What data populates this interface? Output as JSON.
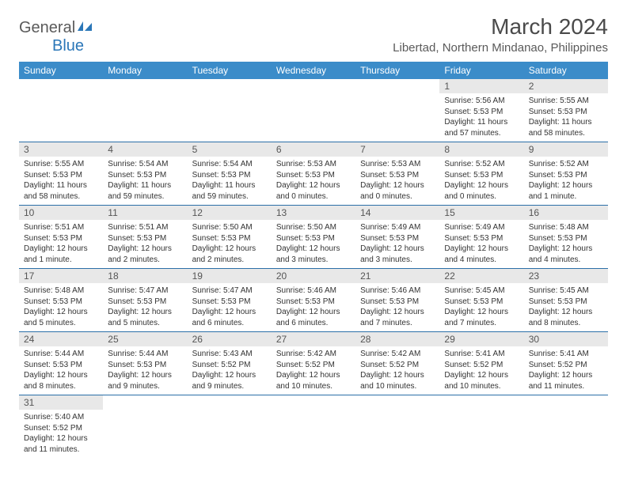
{
  "logo": {
    "text1": "General",
    "text2": "Blue"
  },
  "title": "March 2024",
  "location": "Libertad, Northern Mindanao, Philippines",
  "colors": {
    "header_bg": "#3b8cc9",
    "header_text": "#ffffff",
    "day_num_bg": "#e8e8e8",
    "border": "#2b6fa8",
    "logo_blue": "#2b77b8",
    "logo_gray": "#5a5a5a"
  },
  "weekdays": [
    "Sunday",
    "Monday",
    "Tuesday",
    "Wednesday",
    "Thursday",
    "Friday",
    "Saturday"
  ],
  "weeks": [
    [
      null,
      null,
      null,
      null,
      null,
      {
        "d": "1",
        "sr": "5:56 AM",
        "ss": "5:53 PM",
        "dl": "11 hours and 57 minutes."
      },
      {
        "d": "2",
        "sr": "5:55 AM",
        "ss": "5:53 PM",
        "dl": "11 hours and 58 minutes."
      }
    ],
    [
      {
        "d": "3",
        "sr": "5:55 AM",
        "ss": "5:53 PM",
        "dl": "11 hours and 58 minutes."
      },
      {
        "d": "4",
        "sr": "5:54 AM",
        "ss": "5:53 PM",
        "dl": "11 hours and 59 minutes."
      },
      {
        "d": "5",
        "sr": "5:54 AM",
        "ss": "5:53 PM",
        "dl": "11 hours and 59 minutes."
      },
      {
        "d": "6",
        "sr": "5:53 AM",
        "ss": "5:53 PM",
        "dl": "12 hours and 0 minutes."
      },
      {
        "d": "7",
        "sr": "5:53 AM",
        "ss": "5:53 PM",
        "dl": "12 hours and 0 minutes."
      },
      {
        "d": "8",
        "sr": "5:52 AM",
        "ss": "5:53 PM",
        "dl": "12 hours and 0 minutes."
      },
      {
        "d": "9",
        "sr": "5:52 AM",
        "ss": "5:53 PM",
        "dl": "12 hours and 1 minute."
      }
    ],
    [
      {
        "d": "10",
        "sr": "5:51 AM",
        "ss": "5:53 PM",
        "dl": "12 hours and 1 minute."
      },
      {
        "d": "11",
        "sr": "5:51 AM",
        "ss": "5:53 PM",
        "dl": "12 hours and 2 minutes."
      },
      {
        "d": "12",
        "sr": "5:50 AM",
        "ss": "5:53 PM",
        "dl": "12 hours and 2 minutes."
      },
      {
        "d": "13",
        "sr": "5:50 AM",
        "ss": "5:53 PM",
        "dl": "12 hours and 3 minutes."
      },
      {
        "d": "14",
        "sr": "5:49 AM",
        "ss": "5:53 PM",
        "dl": "12 hours and 3 minutes."
      },
      {
        "d": "15",
        "sr": "5:49 AM",
        "ss": "5:53 PM",
        "dl": "12 hours and 4 minutes."
      },
      {
        "d": "16",
        "sr": "5:48 AM",
        "ss": "5:53 PM",
        "dl": "12 hours and 4 minutes."
      }
    ],
    [
      {
        "d": "17",
        "sr": "5:48 AM",
        "ss": "5:53 PM",
        "dl": "12 hours and 5 minutes."
      },
      {
        "d": "18",
        "sr": "5:47 AM",
        "ss": "5:53 PM",
        "dl": "12 hours and 5 minutes."
      },
      {
        "d": "19",
        "sr": "5:47 AM",
        "ss": "5:53 PM",
        "dl": "12 hours and 6 minutes."
      },
      {
        "d": "20",
        "sr": "5:46 AM",
        "ss": "5:53 PM",
        "dl": "12 hours and 6 minutes."
      },
      {
        "d": "21",
        "sr": "5:46 AM",
        "ss": "5:53 PM",
        "dl": "12 hours and 7 minutes."
      },
      {
        "d": "22",
        "sr": "5:45 AM",
        "ss": "5:53 PM",
        "dl": "12 hours and 7 minutes."
      },
      {
        "d": "23",
        "sr": "5:45 AM",
        "ss": "5:53 PM",
        "dl": "12 hours and 8 minutes."
      }
    ],
    [
      {
        "d": "24",
        "sr": "5:44 AM",
        "ss": "5:53 PM",
        "dl": "12 hours and 8 minutes."
      },
      {
        "d": "25",
        "sr": "5:44 AM",
        "ss": "5:53 PM",
        "dl": "12 hours and 9 minutes."
      },
      {
        "d": "26",
        "sr": "5:43 AM",
        "ss": "5:52 PM",
        "dl": "12 hours and 9 minutes."
      },
      {
        "d": "27",
        "sr": "5:42 AM",
        "ss": "5:52 PM",
        "dl": "12 hours and 10 minutes."
      },
      {
        "d": "28",
        "sr": "5:42 AM",
        "ss": "5:52 PM",
        "dl": "12 hours and 10 minutes."
      },
      {
        "d": "29",
        "sr": "5:41 AM",
        "ss": "5:52 PM",
        "dl": "12 hours and 10 minutes."
      },
      {
        "d": "30",
        "sr": "5:41 AM",
        "ss": "5:52 PM",
        "dl": "12 hours and 11 minutes."
      }
    ],
    [
      {
        "d": "31",
        "sr": "5:40 AM",
        "ss": "5:52 PM",
        "dl": "12 hours and 11 minutes."
      },
      null,
      null,
      null,
      null,
      null,
      null
    ]
  ],
  "labels": {
    "sunrise": "Sunrise:",
    "sunset": "Sunset:",
    "daylight": "Daylight:"
  }
}
